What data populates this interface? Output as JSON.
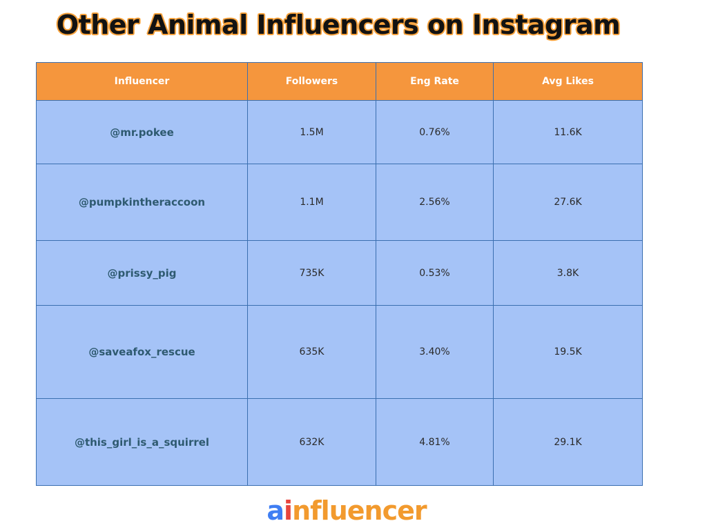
{
  "title": "Other Animal Influencers on Instagram",
  "table": {
    "headers": [
      "Influencer",
      "Followers",
      "Eng Rate",
      "Avg Likes"
    ],
    "rows": [
      [
        "@mr.pokee",
        "1.5M",
        "0.76%",
        "11.6K"
      ],
      [
        "@pumpkintheraccoon",
        "1.1M",
        "2.56%",
        "27.6K"
      ],
      [
        "@prissy_pig",
        "735K",
        "0.53%",
        "3.8K"
      ],
      [
        "@saveafox_rescue",
        "635K",
        "3.40%",
        "19.5K"
      ],
      [
        "@this_girl_is_a_squirrel",
        "632K",
        "4.81%",
        "29.1K"
      ]
    ]
  },
  "logo": {
    "text": "ainfluencer",
    "part_a": "a",
    "part_i": "i",
    "part_rest": "nfluencer",
    "colors": {
      "a": "#3f7ef3",
      "i": "#e8453d",
      "rest": "#f29a2e"
    }
  },
  "colors": {
    "header_bg": "#f5963d",
    "cell_bg": "#a5c3f7",
    "border": "#3a6fb0",
    "title_outline": "#f7a23c"
  }
}
